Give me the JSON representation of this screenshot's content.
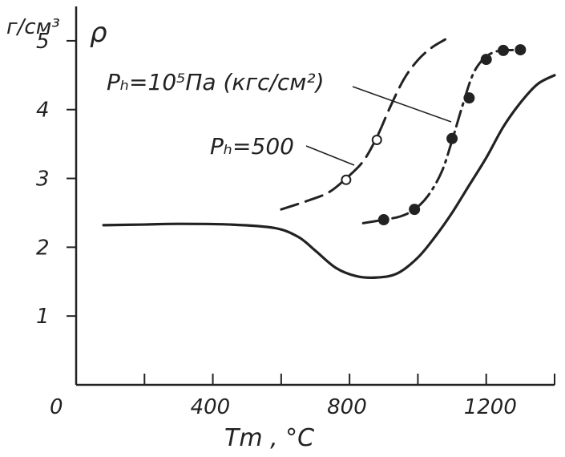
{
  "chart_data": {
    "type": "line",
    "title": "",
    "ylabel_unit": "г/см³",
    "ylabel_symbol": "ρ",
    "xlabel": "Tm , °C",
    "xlim": [
      0,
      1400
    ],
    "ylim": [
      0,
      5.5
    ],
    "x_ticks": [
      400,
      800,
      1200
    ],
    "x_minor_ticks": [
      200,
      600,
      1000,
      1400
    ],
    "x_origin_label": "0",
    "y_ticks": [
      1,
      2,
      3,
      4,
      5
    ],
    "y_tick_labels": [
      "1",
      "2",
      "3",
      "4",
      "5"
    ],
    "x_tick_labels": [
      "400",
      "800",
      "1200"
    ],
    "grid": false,
    "series": [
      {
        "name": "",
        "style": "solid",
        "color": "#222222",
        "x": [
          80,
          200,
          300,
          450,
          580,
          650,
          700,
          760,
          820,
          880,
          940,
          1000,
          1050,
          1100,
          1150,
          1200,
          1250,
          1300,
          1350,
          1400
        ],
        "y": [
          2.32,
          2.33,
          2.34,
          2.33,
          2.28,
          2.15,
          1.95,
          1.7,
          1.58,
          1.56,
          1.62,
          1.85,
          2.15,
          2.5,
          2.9,
          3.3,
          3.75,
          4.1,
          4.37,
          4.5
        ]
      },
      {
        "name": "Pₕ=500",
        "style": "dashed",
        "color": "#222222",
        "x": [
          600,
          680,
          740,
          790,
          840,
          880,
          920,
          960,
          1000,
          1040,
          1080
        ],
        "y": [
          2.55,
          2.68,
          2.8,
          3.0,
          3.25,
          3.6,
          4.05,
          4.45,
          4.72,
          4.9,
          5.02
        ],
        "markers": {
          "shape": "open-circle",
          "x": [
            790,
            880
          ],
          "y": [
            2.98,
            3.56
          ]
        }
      },
      {
        "name": "Pₕ=10⁵Па (кгс/см²)",
        "style": "dash-dot",
        "color": "#222222",
        "x": [
          840,
          900,
          950,
          990,
          1030,
          1070,
          1100,
          1130,
          1160,
          1190,
          1220,
          1250,
          1300
        ],
        "y": [
          2.35,
          2.4,
          2.45,
          2.55,
          2.75,
          3.1,
          3.55,
          4.05,
          4.5,
          4.73,
          4.83,
          4.86,
          4.87
        ],
        "markers": {
          "shape": "filled-circle",
          "x": [
            900,
            990,
            1100,
            1150,
            1200,
            1250,
            1300
          ],
          "y": [
            2.4,
            2.55,
            3.58,
            4.17,
            4.73,
            4.86,
            4.87
          ]
        }
      }
    ],
    "annotations": [
      {
        "text_main": "Pₕ=10⁵Па (кгс/см²)",
        "points_to": "dash-dot"
      },
      {
        "text_main": "Pₕ=500",
        "points_to": "dashed"
      }
    ]
  }
}
